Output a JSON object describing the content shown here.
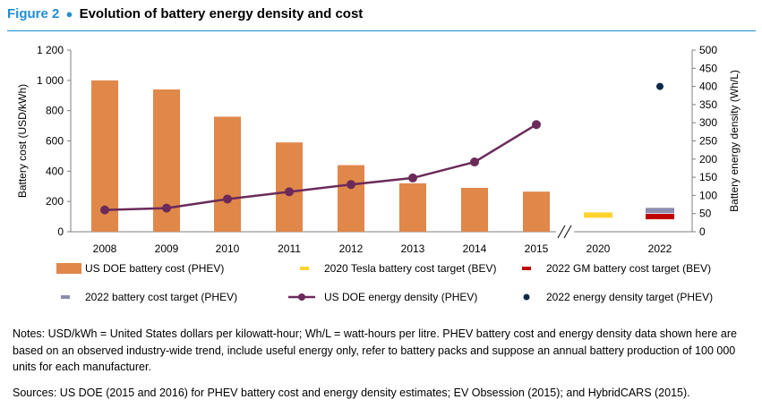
{
  "figure": {
    "label": "Figure 2",
    "separator": "●",
    "title": "Evolution of battery energy density and cost"
  },
  "notes": "Notes: USD/kWh = United States dollars per kilowatt-hour; Wh/L = watt-hours per litre. PHEV battery cost and energy density data shown here are based on an observed industry-wide trend, include useful energy only, refer to battery packs and suppose an annual battery production of 100 000 units for each manufacturer.",
  "sources": "Sources: US DOE (2015 and 2016) for PHEV battery cost and energy density estimates; EV Obsession (2015); and HybridCARS (2015).",
  "chart_data": {
    "type": "bar",
    "categories": [
      "2008",
      "2009",
      "2010",
      "2011",
      "2012",
      "2013",
      "2014",
      "2015",
      "2020",
      "2022"
    ],
    "axis_break_between": [
      "2015",
      "2020"
    ],
    "ylabel": "Battery cost (USD/kWh)",
    "y2label": "Battery energy density (Wh/L)",
    "ylim": [
      0,
      1200
    ],
    "y2lim": [
      0,
      500
    ],
    "yticks": [
      0,
      200,
      400,
      600,
      800,
      1000,
      1200
    ],
    "yticklabels": [
      "0",
      "200",
      "400",
      "600",
      "800",
      "1 000",
      "1 200"
    ],
    "y2ticks": [
      0,
      50,
      100,
      150,
      200,
      250,
      300,
      350,
      400,
      450,
      500
    ],
    "series": [
      {
        "name": "US DOE battery cost (PHEV)",
        "kind": "bar",
        "axis": "left",
        "color": "#e0874a",
        "values": [
          1000,
          940,
          760,
          590,
          440,
          320,
          290,
          265,
          null,
          null
        ]
      },
      {
        "name": "2020 Tesla battery cost target (BEV)",
        "kind": "marker-bar",
        "axis": "left",
        "color": "#ffd22e",
        "values": [
          null,
          null,
          null,
          null,
          null,
          null,
          null,
          null,
          110,
          null
        ]
      },
      {
        "name": "2022 GM battery cost target (BEV)",
        "kind": "marker-bar",
        "axis": "left",
        "color": "#c00000",
        "values": [
          null,
          null,
          null,
          null,
          null,
          null,
          null,
          null,
          null,
          100
        ]
      },
      {
        "name": "2022 battery cost target (PHEV)",
        "kind": "marker-bar",
        "axis": "left",
        "color": "#8c8cac",
        "values": [
          null,
          null,
          null,
          null,
          null,
          null,
          null,
          null,
          null,
          140
        ]
      },
      {
        "name": "US DOE energy density (PHEV)",
        "kind": "line",
        "axis": "right",
        "color": "#6b2a5a",
        "values": [
          60,
          65,
          90,
          110,
          130,
          148,
          192,
          295,
          null,
          null
        ]
      },
      {
        "name": "2022 energy density target (PHEV)",
        "kind": "scatter",
        "axis": "right",
        "color": "#0d2a4a",
        "values": [
          null,
          null,
          null,
          null,
          null,
          null,
          null,
          null,
          null,
          400
        ]
      }
    ],
    "legend_placement": "bottom",
    "grid": false,
    "colors": {
      "axis": "#7f7f7f",
      "accent": "#1f8fd6"
    }
  }
}
